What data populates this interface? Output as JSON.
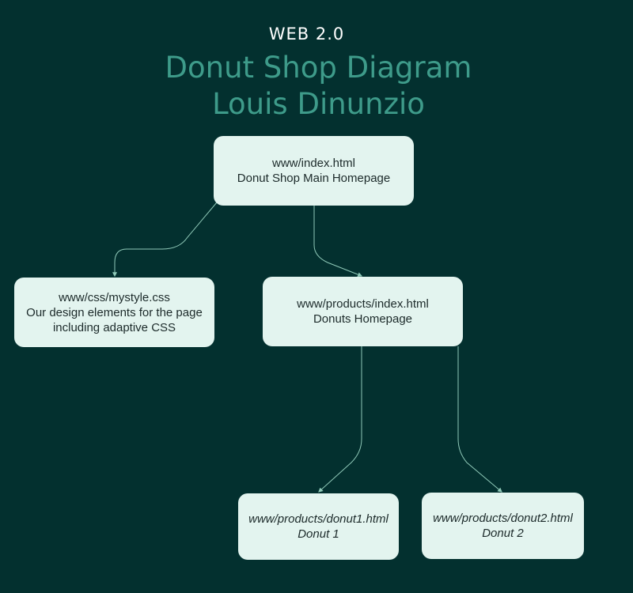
{
  "header": {
    "kicker": "WEB 2.0",
    "title_line1": "Donut Shop Diagram",
    "title_line2": "Louis Dinunzio"
  },
  "nodes": {
    "home": {
      "path": "www/index.html",
      "description": "Donut Shop Main Homepage"
    },
    "css": {
      "path": "www/css/mystyle.css",
      "description_line1": "Our design elements for the page",
      "description_line2": "including adaptive CSS"
    },
    "products": {
      "path": "www/products/index.html",
      "description": "Donuts Homepage"
    },
    "donut1": {
      "path": "www/products/donut1.html",
      "description": "Donut 1"
    },
    "donut2": {
      "path": "www/products/donut2.html",
      "description": "Donut 2"
    }
  },
  "colors": {
    "background": "#03302f",
    "title": "#3e9b8a",
    "node_fill": "#e3f4ef",
    "connector": "#8fc9b8"
  }
}
